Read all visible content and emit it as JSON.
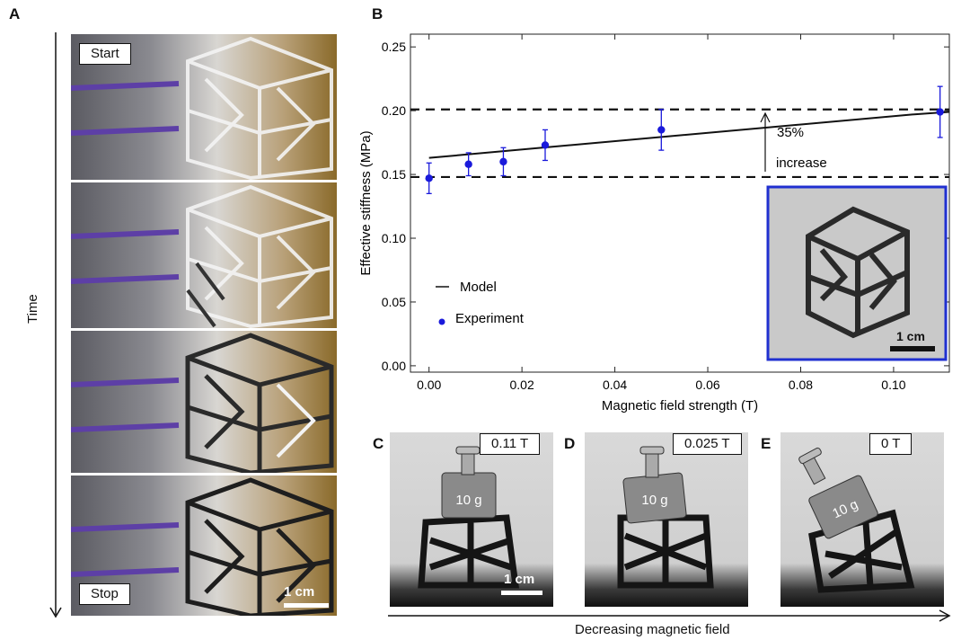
{
  "panel_a": {
    "letter": "A",
    "time_label": "Time",
    "start_label": "Start",
    "stop_label": "Stop",
    "scale_label": "1 cm"
  },
  "panel_b": {
    "letter": "B",
    "inset_scale_label": "1 cm",
    "annotation_line1": "35%",
    "annotation_line2": "increase"
  },
  "panel_c": {
    "letter": "C",
    "field_label": "0.11 T",
    "weight_label": "10 g",
    "scale_label": "1 cm"
  },
  "panel_d": {
    "letter": "D",
    "field_label": "0.025 T",
    "weight_label": "10 g"
  },
  "panel_e": {
    "letter": "E",
    "field_label": "0 T",
    "weight_label": "10 g"
  },
  "bottom_axis_label": "Decreasing magnetic field",
  "chart_data": {
    "type": "scatter",
    "xlabel": "Magnetic field strength (T)",
    "ylabel": "Effective stiffness (MPa)",
    "xlim": [
      -0.004,
      0.112
    ],
    "ylim": [
      -0.005,
      0.26
    ],
    "x_ticks": [
      "0.00",
      "0.02",
      "0.04",
      "0.06",
      "0.08",
      "0.10"
    ],
    "x_tick_values": [
      0,
      0.02,
      0.04,
      0.06,
      0.08,
      0.1
    ],
    "y_ticks": [
      "0.00",
      "0.05",
      "0.10",
      "0.15",
      "0.20",
      "0.25"
    ],
    "y_tick_values": [
      0,
      0.05,
      0.1,
      0.15,
      0.2,
      0.25
    ],
    "legend": {
      "placement": "lower-left",
      "entries": [
        "Model",
        "Experiment"
      ]
    },
    "model_line": {
      "name": "Model",
      "x": [
        0,
        0.104,
        0.112
      ],
      "y": [
        0.163,
        0.197,
        0.199
      ]
    },
    "experiment": {
      "name": "Experiment",
      "color": "#1a1adb",
      "x": [
        0,
        0.0085,
        0.016,
        0.025,
        0.05,
        0.11
      ],
      "y": [
        0.147,
        0.158,
        0.16,
        0.173,
        0.185,
        0.199
      ],
      "err": [
        0.012,
        0.009,
        0.011,
        0.012,
        0.016,
        0.02
      ]
    },
    "reference_lines": [
      0.148,
      0.201
    ]
  }
}
